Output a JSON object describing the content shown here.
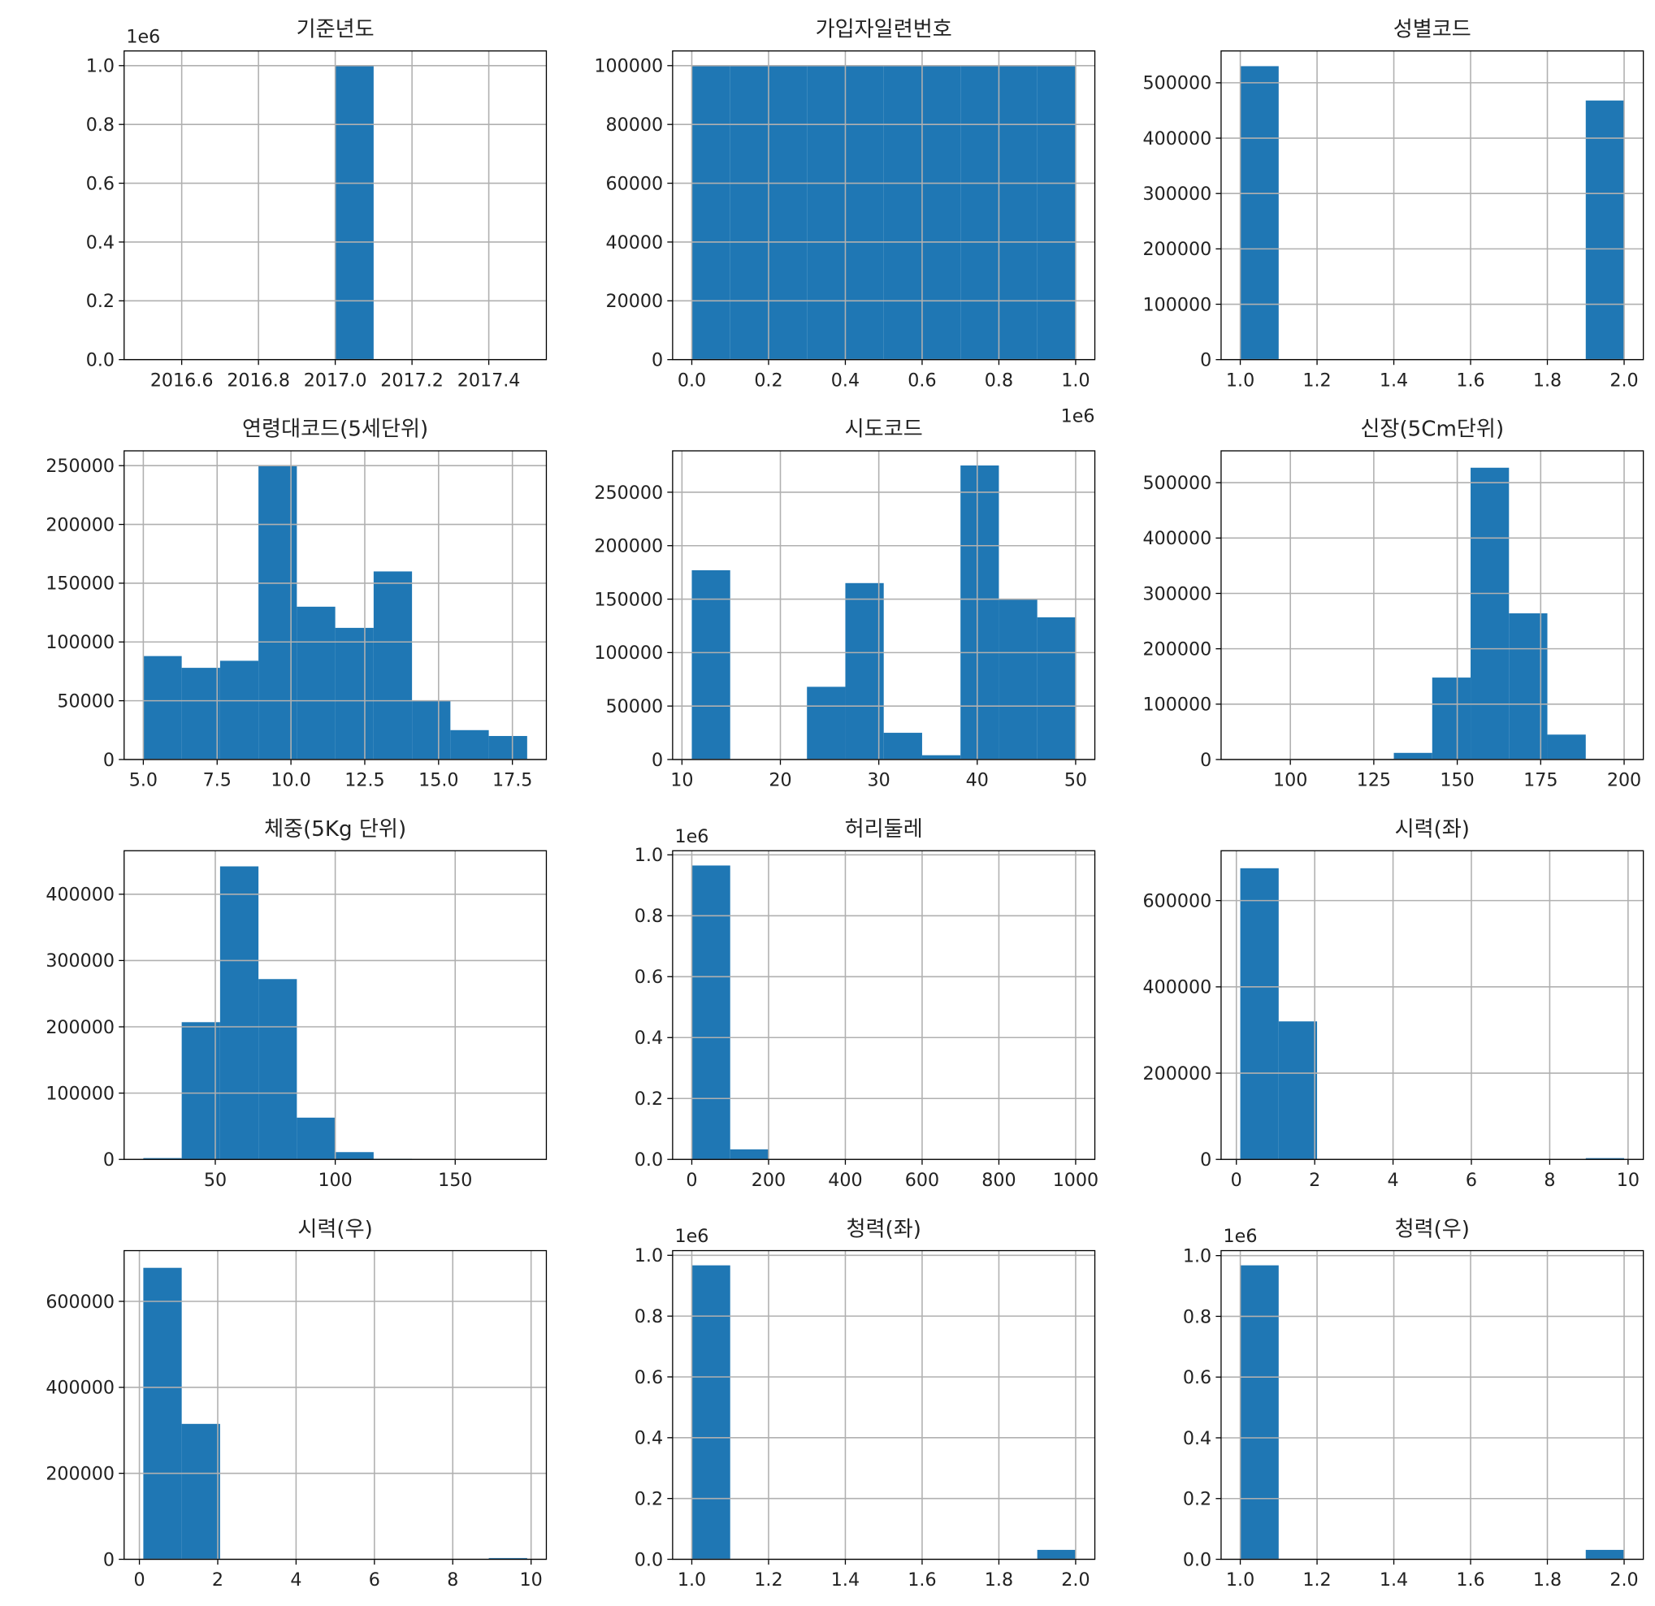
{
  "chart_data": [
    {
      "type": "histogram",
      "title": "기준년도",
      "color": "#1f77b4",
      "grid": true,
      "y_offset_label": "1e6",
      "bins": [
        2016.5,
        2016.6,
        2016.7,
        2016.8,
        2016.9,
        2017.0,
        2017.1,
        2017.2,
        2017.3,
        2017.4,
        2017.5
      ],
      "counts": [
        0,
        0,
        0,
        0,
        0,
        1.0,
        0,
        0,
        0,
        0
      ],
      "xlim": [
        2016.45,
        2017.55
      ],
      "xticks": [
        2016.6,
        2016.8,
        {
          "value": 2017.0,
          "label": "2017.0"
        },
        2017.2,
        2017.4
      ],
      "ylim": [
        0,
        1.05
      ],
      "yticks": [
        {
          "value": 0,
          "label": "0.0"
        },
        0.2,
        0.4,
        0.6,
        0.8,
        {
          "value": 1,
          "label": "1.0"
        }
      ]
    },
    {
      "type": "histogram",
      "title": "가입자일련번호",
      "color": "#1f77b4",
      "grid": true,
      "x_offset_label": "1e6",
      "bins": [
        0,
        0.1,
        0.2,
        0.3,
        0.4,
        0.5,
        0.6,
        0.7,
        0.8,
        0.9,
        1.0
      ],
      "counts": [
        100000,
        100000,
        100000,
        100000,
        100000,
        100000,
        100000,
        100000,
        100000,
        100000
      ],
      "xlim": [
        -0.05,
        1.05
      ],
      "xticks": [
        {
          "value": 0,
          "label": "0.0"
        },
        0.2,
        0.4,
        0.6,
        0.8,
        {
          "value": 1,
          "label": "1.0"
        }
      ],
      "ylim": [
        0,
        105000
      ],
      "yticks": [
        0,
        20000,
        40000,
        60000,
        80000,
        100000
      ]
    },
    {
      "type": "histogram",
      "title": "성별코드",
      "color": "#1f77b4",
      "grid": true,
      "bins": [
        1.0,
        1.1,
        1.2,
        1.3,
        1.4,
        1.5,
        1.6,
        1.7,
        1.8,
        1.9,
        2.0
      ],
      "counts": [
        530000,
        0,
        0,
        0,
        0,
        0,
        0,
        0,
        0,
        468000
      ],
      "xlim": [
        0.95,
        2.05
      ],
      "xticks": [
        {
          "value": 1,
          "label": "1.0"
        },
        1.2,
        1.4,
        1.6,
        1.8,
        {
          "value": 2,
          "label": "2.0"
        }
      ],
      "ylim": [
        0,
        557500
      ],
      "yticks": [
        0,
        100000,
        200000,
        300000,
        400000,
        500000
      ]
    },
    {
      "type": "histogram",
      "title": "연령대코드(5세단위)",
      "color": "#1f77b4",
      "grid": true,
      "bins": [
        5,
        6.3,
        7.6,
        8.9,
        10.2,
        11.5,
        12.8,
        14.1,
        15.4,
        16.7,
        18
      ],
      "counts": [
        88000,
        78000,
        84000,
        250000,
        130000,
        112000,
        160000,
        50000,
        25000,
        20000
      ],
      "xlim": [
        4.35,
        18.65
      ],
      "xticks": [
        {
          "value": 5,
          "label": "5.0"
        },
        7.5,
        {
          "value": 10,
          "label": "10.0"
        },
        12.5,
        {
          "value": 15,
          "label": "15.0"
        },
        17.5
      ],
      "ylim": [
        0,
        262600
      ],
      "yticks": [
        0,
        50000,
        100000,
        150000,
        200000,
        250000
      ]
    },
    {
      "type": "histogram",
      "title": "시도코드",
      "color": "#1f77b4",
      "grid": true,
      "bins": [
        11,
        14.9,
        18.8,
        22.7,
        26.6,
        30.5,
        34.4,
        38.3,
        42.2,
        46.1,
        50
      ],
      "counts": [
        177000,
        0,
        0,
        68000,
        165000,
        25000,
        4000,
        275000,
        150000,
        133000
      ],
      "xlim": [
        9.05,
        51.95
      ],
      "xticks": [
        10,
        20,
        30,
        40,
        50
      ],
      "ylim": [
        0,
        288700
      ],
      "yticks": [
        0,
        50000,
        100000,
        150000,
        200000,
        250000
      ]
    },
    {
      "type": "histogram",
      "title": "신장(5Cm단위)",
      "color": "#1f77b4",
      "grid": true,
      "bins": [
        85,
        96.5,
        108,
        119.5,
        131,
        142.5,
        154,
        165.5,
        177,
        188.5,
        200
      ],
      "counts": [
        0,
        0,
        0,
        0,
        12000,
        148000,
        527000,
        264000,
        45000,
        1000
      ],
      "xlim": [
        79.25,
        205.75
      ],
      "xticks": [
        100,
        125,
        150,
        175,
        200
      ],
      "ylim": [
        0,
        557500
      ],
      "yticks": [
        0,
        100000,
        200000,
        300000,
        400000,
        500000
      ]
    },
    {
      "type": "histogram",
      "title": "체중(5Kg 단위)",
      "color": "#1f77b4",
      "grid": true,
      "bins": [
        20,
        36,
        52,
        68,
        84,
        100,
        116,
        132,
        148,
        164,
        180
      ],
      "counts": [
        2000,
        207000,
        442000,
        272000,
        63000,
        11000,
        1000,
        0,
        0,
        0
      ],
      "xlim": [
        12,
        188
      ],
      "xticks": [
        50,
        100,
        150
      ],
      "ylim": [
        0,
        465600
      ],
      "yticks": [
        0,
        100000,
        200000,
        300000,
        400000
      ]
    },
    {
      "type": "histogram",
      "title": "허리둘레",
      "color": "#1f77b4",
      "grid": true,
      "y_offset_label": "1e6",
      "bins": [
        0,
        100,
        200,
        300,
        400,
        500,
        600,
        700,
        800,
        900,
        1000
      ],
      "counts": [
        0.965,
        0.033,
        0,
        0,
        0,
        0,
        0,
        0,
        0,
        0.001
      ],
      "xlim": [
        -50,
        1050
      ],
      "xticks": [
        0,
        200,
        400,
        600,
        800,
        1000
      ],
      "ylim": [
        0,
        1.0135
      ],
      "yticks": [
        {
          "value": 0,
          "label": "0.0"
        },
        0.2,
        0.4,
        0.6,
        0.8,
        {
          "value": 1,
          "label": "1.0"
        }
      ]
    },
    {
      "type": "histogram",
      "title": "시력(좌)",
      "color": "#1f77b4",
      "grid": true,
      "bins": [
        0.1,
        1.08,
        2.06,
        3.04,
        4.02,
        5.0,
        5.98,
        6.96,
        7.94,
        8.92,
        9.9
      ],
      "counts": [
        675000,
        320000,
        0,
        0,
        0,
        0,
        0,
        0,
        0,
        3000
      ],
      "xlim": [
        -0.39,
        10.39
      ],
      "xticks": [
        0,
        2,
        4,
        6,
        8,
        10
      ],
      "ylim": [
        0,
        715600
      ],
      "yticks": [
        0,
        200000,
        400000,
        600000
      ]
    },
    {
      "type": "histogram",
      "title": "시력(우)",
      "color": "#1f77b4",
      "grid": true,
      "bins": [
        0.1,
        1.08,
        2.06,
        3.04,
        4.02,
        5.0,
        5.98,
        6.96,
        7.94,
        8.92,
        9.9
      ],
      "counts": [
        678000,
        315000,
        0,
        0,
        0,
        0,
        0,
        0,
        0,
        3000
      ],
      "xlim": [
        -0.39,
        10.39
      ],
      "xticks": [
        0,
        2,
        4,
        6,
        8,
        10
      ],
      "ylim": [
        0,
        718000
      ],
      "yticks": [
        0,
        200000,
        400000,
        600000
      ]
    },
    {
      "type": "histogram",
      "title": "청력(좌)",
      "color": "#1f77b4",
      "grid": true,
      "y_offset_label": "1e6",
      "bins": [
        1.0,
        1.1,
        1.2,
        1.3,
        1.4,
        1.5,
        1.6,
        1.7,
        1.8,
        1.9,
        2.0
      ],
      "counts": [
        0.967,
        0,
        0,
        0,
        0,
        0,
        0,
        0,
        0,
        0.031
      ],
      "xlim": [
        0.95,
        2.05
      ],
      "xticks": [
        {
          "value": 1,
          "label": "1.0"
        },
        1.2,
        1.4,
        1.6,
        1.8,
        {
          "value": 2,
          "label": "2.0"
        }
      ],
      "ylim": [
        0,
        1.0154
      ],
      "yticks": [
        {
          "value": 0,
          "label": "0.0"
        },
        0.2,
        0.4,
        0.6,
        0.8,
        {
          "value": 1,
          "label": "1.0"
        }
      ]
    },
    {
      "type": "histogram",
      "title": "청력(우)",
      "color": "#1f77b4",
      "grid": true,
      "y_offset_label": "1e6",
      "bins": [
        1.0,
        1.1,
        1.2,
        1.3,
        1.4,
        1.5,
        1.6,
        1.7,
        1.8,
        1.9,
        2.0
      ],
      "counts": [
        0.968,
        0,
        0,
        0,
        0,
        0,
        0,
        0,
        0,
        0.031
      ],
      "xlim": [
        0.95,
        2.05
      ],
      "xticks": [
        {
          "value": 1,
          "label": "1.0"
        },
        1.2,
        1.4,
        1.6,
        1.8,
        {
          "value": 2,
          "label": "2.0"
        }
      ],
      "ylim": [
        0,
        1.0164
      ],
      "yticks": [
        {
          "value": 0,
          "label": "0.0"
        },
        0.2,
        0.4,
        0.6,
        0.8,
        {
          "value": 1,
          "label": "1.0"
        }
      ]
    }
  ]
}
